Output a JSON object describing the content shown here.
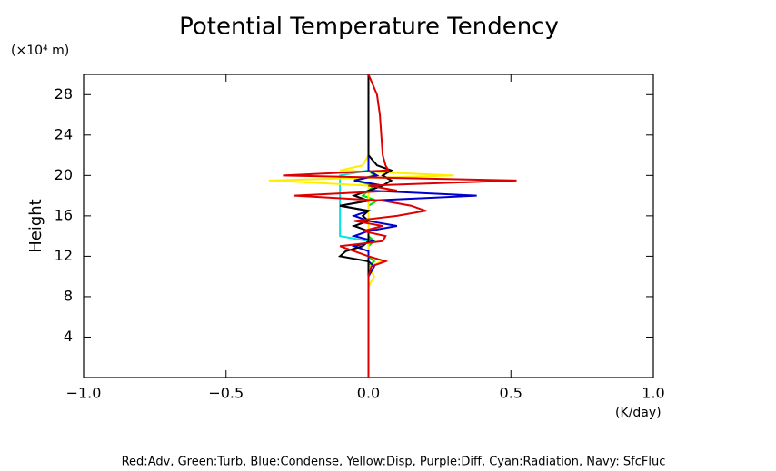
{
  "chart_data": {
    "type": "line",
    "title": "Potential Temperature Tendency",
    "y_unit": "(×10⁴ m)",
    "y_label": "Height",
    "x_unit": "(K/day)",
    "legend_text": "Red:Adv, Green:Turb, Blue:Condense, Yellow:Disp, Purple:Diff, Cyan:Radiation, Navy: SfcFluc",
    "xlim": [
      -1,
      1
    ],
    "xticks": [
      {
        "value": -1,
        "label": "−1.0"
      },
      {
        "value": -0.5,
        "label": "−0.5"
      },
      {
        "value": 0,
        "label": "0.0"
      },
      {
        "value": 0.5,
        "label": "0.5"
      },
      {
        "value": 1,
        "label": "1.0"
      }
    ],
    "ylim": [
      0,
      30
    ],
    "yticks": [
      4,
      8,
      12,
      16,
      20,
      24,
      28
    ],
    "y": [
      0,
      9,
      10,
      11,
      11.5,
      12,
      12.5,
      13,
      13.5,
      14,
      14.5,
      15,
      15.5,
      16,
      16.5,
      17,
      17.5,
      18,
      18.5,
      19,
      19.5,
      20,
      20.5,
      21,
      22,
      24,
      26,
      28,
      30
    ],
    "series": [
      {
        "color": "#00e5e5",
        "values": [
          0,
          0,
          0,
          0,
          0,
          0,
          0,
          0,
          0,
          -0.1,
          -0.1,
          -0.1,
          -0.1,
          -0.1,
          -0.1,
          -0.1,
          -0.1,
          -0.1,
          -0.1,
          -0.1,
          -0.1,
          -0.1,
          0,
          0,
          0,
          0,
          0,
          0,
          0
        ]
      },
      {
        "color": "#00dd00",
        "values": [
          0,
          0,
          0,
          0,
          0.02,
          0,
          0,
          0,
          0.02,
          0,
          0,
          0,
          0,
          0,
          0,
          0,
          0.03,
          -0.02,
          0,
          0.02,
          -0.05,
          0.02,
          0,
          0,
          0,
          0,
          0,
          0,
          0
        ]
      },
      {
        "color": "#ffee00",
        "values": [
          0,
          0,
          0.02,
          0,
          0.05,
          0,
          0,
          0,
          0,
          0,
          0,
          0,
          0,
          0,
          0,
          0,
          0,
          0,
          0,
          0,
          -0.35,
          0.3,
          -0.1,
          -0.02,
          0,
          0,
          0,
          0,
          0
        ]
      },
      {
        "color": "#0000cc",
        "values": [
          0,
          0,
          0,
          0.02,
          0,
          0,
          0,
          -0.05,
          0.02,
          -0.05,
          0,
          0.1,
          0,
          -0.05,
          0,
          -0.1,
          0,
          0.38,
          0,
          0.05,
          -0.05,
          0.03,
          0,
          0,
          0,
          0,
          0,
          0,
          0
        ]
      },
      {
        "color": "#000000",
        "values": [
          0,
          0,
          0,
          0,
          0,
          -0.1,
          -0.08,
          -0.02,
          0,
          0,
          0,
          -0.05,
          0,
          -0.02,
          0,
          -0.1,
          0,
          -0.05,
          0,
          0.05,
          0.08,
          0.05,
          0.08,
          0.03,
          0,
          0,
          0,
          0,
          0
        ]
      },
      {
        "color": "#dd0000",
        "values": [
          0,
          0,
          0,
          0.01,
          0.06,
          0,
          -0.05,
          -0.1,
          0.05,
          0.06,
          -0.02,
          0.05,
          -0.05,
          0.1,
          0.2,
          0.15,
          0.05,
          -0.26,
          0.1,
          0,
          0.52,
          -0.3,
          0.07,
          0.06,
          0.05,
          0.045,
          0.04,
          0.03,
          0
        ]
      }
    ]
  }
}
